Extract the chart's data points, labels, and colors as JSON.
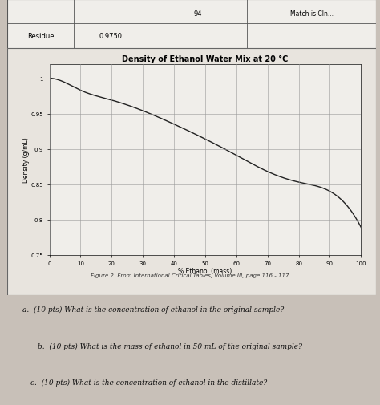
{
  "title": "Density of Ethanol Water Mix at 20 °C",
  "xlabel": "% Ethanol (mass)",
  "ylabel": "Density (g/mL)",
  "x_data": [
    0,
    5,
    10,
    20,
    30,
    40,
    50,
    60,
    70,
    80,
    90,
    100
  ],
  "y_data": [
    1.0,
    0.994,
    0.983,
    0.969,
    0.954,
    0.935,
    0.914,
    0.891,
    0.868,
    0.853,
    0.84,
    0.789
  ],
  "xlim": [
    0,
    100
  ],
  "ylim": [
    0.75,
    1.02
  ],
  "xticks": [
    0,
    10,
    20,
    30,
    40,
    50,
    60,
    70,
    80,
    90,
    100
  ],
  "yticks": [
    0.75,
    0.8,
    0.85,
    0.9,
    0.95,
    1.0
  ],
  "ytick_labels": [
    "0.75",
    "0.8",
    "0.85",
    "0.9",
    "0.95",
    "1"
  ],
  "caption": "Figure 2. From International Critical Tables, Volume III, page 116 - 117",
  "question_a": "a.  (10 pts) What is the concentration of ethanol in the original sample?",
  "question_b": "b.  (10 pts) What is the mass of ethanol in 50 mL of the original sample?",
  "question_c": "c.  (10 pts) What is the concentration of ethanol in the distillate?",
  "table_residue_label": "Residue",
  "table_residue_value": "0.9750",
  "table_col2_value": "94",
  "table_col3_label": "Match is Cln...",
  "bg_color": "#c8c0b8",
  "paper_color": "#e8e4de",
  "plot_bg": "#f0eeea",
  "line_color": "#222222",
  "grid_color": "#999999",
  "title_fontsize": 7,
  "label_fontsize": 5.5,
  "tick_fontsize": 5,
  "caption_fontsize": 5,
  "question_fontsize": 6.5
}
